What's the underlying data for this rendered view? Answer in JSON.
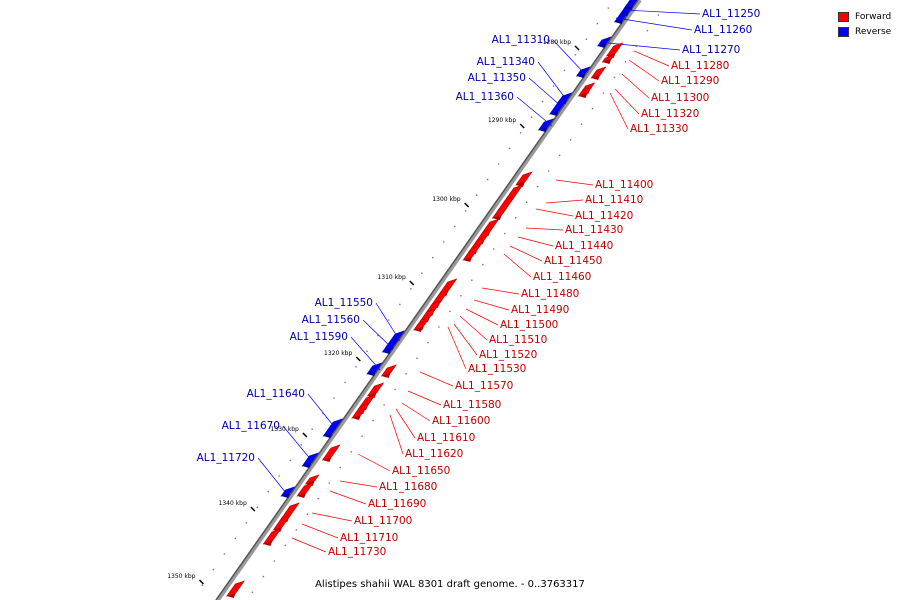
{
  "legend": {
    "forward_label": "Forward",
    "reverse_label": "Reverse",
    "forward_color": "#ff0000",
    "reverse_color": "#0000ff"
  },
  "caption": "Alistipes shahii WAL 8301 draft genome. - 0..3763317",
  "ticks": [
    {
      "label": "1280 kbp"
    },
    {
      "label": "1290 kbp"
    },
    {
      "label": "1300 kbp"
    },
    {
      "label": "1310 kbp"
    },
    {
      "label": "1320 kbp"
    },
    {
      "label": "1330 kbp"
    },
    {
      "label": "1340 kbp"
    },
    {
      "label": "1350 kbp"
    }
  ],
  "genes": [
    {
      "name": "AL1_11250",
      "strand": "reverse"
    },
    {
      "name": "AL1_11260",
      "strand": "reverse"
    },
    {
      "name": "AL1_11270",
      "strand": "reverse"
    },
    {
      "name": "AL1_11280",
      "strand": "forward"
    },
    {
      "name": "AL1_11290",
      "strand": "forward"
    },
    {
      "name": "AL1_11300",
      "strand": "forward"
    },
    {
      "name": "AL1_11310",
      "strand": "reverse"
    },
    {
      "name": "AL1_11320",
      "strand": "forward"
    },
    {
      "name": "AL1_11330",
      "strand": "forward"
    },
    {
      "name": "AL1_11340",
      "strand": "reverse"
    },
    {
      "name": "AL1_11350",
      "strand": "reverse"
    },
    {
      "name": "AL1_11360",
      "strand": "reverse"
    },
    {
      "name": "AL1_11400",
      "strand": "forward"
    },
    {
      "name": "AL1_11410",
      "strand": "forward"
    },
    {
      "name": "AL1_11420",
      "strand": "forward"
    },
    {
      "name": "AL1_11430",
      "strand": "forward"
    },
    {
      "name": "AL1_11440",
      "strand": "forward"
    },
    {
      "name": "AL1_11450",
      "strand": "forward"
    },
    {
      "name": "AL1_11460",
      "strand": "forward"
    },
    {
      "name": "AL1_11480",
      "strand": "forward"
    },
    {
      "name": "AL1_11490",
      "strand": "forward"
    },
    {
      "name": "AL1_11500",
      "strand": "forward"
    },
    {
      "name": "AL1_11510",
      "strand": "forward"
    },
    {
      "name": "AL1_11520",
      "strand": "forward"
    },
    {
      "name": "AL1_11530",
      "strand": "forward"
    },
    {
      "name": "AL1_11550",
      "strand": "reverse"
    },
    {
      "name": "AL1_11560",
      "strand": "reverse"
    },
    {
      "name": "AL1_11570",
      "strand": "forward"
    },
    {
      "name": "AL1_11580",
      "strand": "forward"
    },
    {
      "name": "AL1_11590",
      "strand": "reverse"
    },
    {
      "name": "AL1_11600",
      "strand": "forward"
    },
    {
      "name": "AL1_11610",
      "strand": "forward"
    },
    {
      "name": "AL1_11620",
      "strand": "forward"
    },
    {
      "name": "AL1_11640",
      "strand": "reverse"
    },
    {
      "name": "AL1_11650",
      "strand": "forward"
    },
    {
      "name": "AL1_11670",
      "strand": "reverse"
    },
    {
      "name": "AL1_11680",
      "strand": "forward"
    },
    {
      "name": "AL1_11690",
      "strand": "forward"
    },
    {
      "name": "AL1_11700",
      "strand": "forward"
    },
    {
      "name": "AL1_11710",
      "strand": "forward"
    },
    {
      "name": "AL1_11720",
      "strand": "reverse"
    },
    {
      "name": "AL1_11730",
      "strand": "forward"
    }
  ]
}
